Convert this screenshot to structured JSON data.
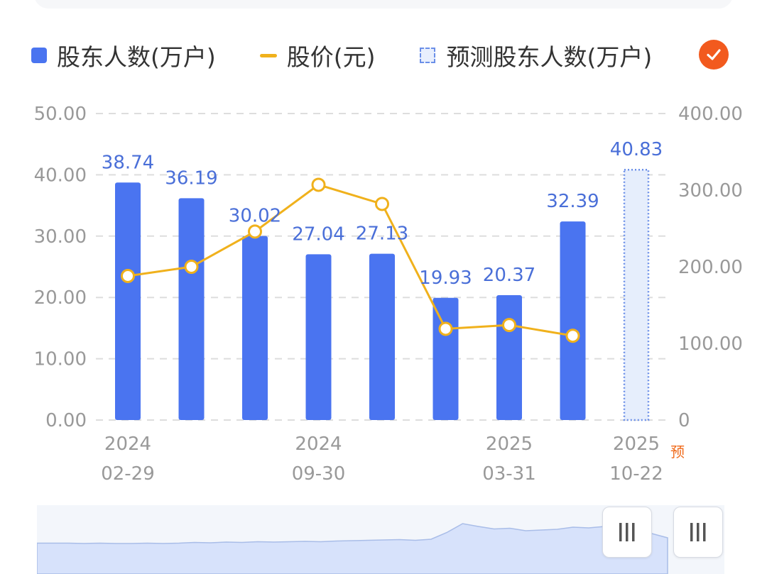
{
  "legend": {
    "items": [
      {
        "label": "股东人数(万户)",
        "kind": "bar",
        "color": "#4a74f0"
      },
      {
        "label": "股价(元)",
        "kind": "line",
        "color": "#f0b11c"
      },
      {
        "label": "预测股东人数(万户)",
        "kind": "dashed",
        "color": "#6b8fe8"
      }
    ],
    "check_icon": "check-icon"
  },
  "chart_data": {
    "type": "bar",
    "categories": [
      "2024-02-29",
      "",
      "",
      "2024-09-30",
      "",
      "",
      "2025-03-31",
      "",
      "2025-10-22"
    ],
    "x_tick_labels": [
      {
        "index": 0,
        "year": "2024",
        "date": "02-29"
      },
      {
        "index": 3,
        "year": "2024",
        "date": "09-30"
      },
      {
        "index": 6,
        "year": "2025",
        "date": "03-31"
      },
      {
        "index": 8,
        "year": "2025",
        "date": "10-22",
        "flag": "预"
      }
    ],
    "series": [
      {
        "name": "股东人数(万户)",
        "type": "bar",
        "axis": "left",
        "values": [
          38.74,
          36.19,
          30.02,
          27.04,
          27.13,
          19.93,
          20.37,
          32.39,
          null
        ],
        "labels": [
          "38.74",
          "36.19",
          "30.02",
          "27.04",
          "27.13",
          "19.93",
          "20.37",
          "32.39",
          ""
        ]
      },
      {
        "name": "股价(元)",
        "type": "line",
        "axis": "right",
        "values": [
          188,
          200,
          246,
          307,
          282,
          119,
          124,
          110,
          null
        ]
      },
      {
        "name": "预测股东人数(万户)",
        "type": "bar-dashed",
        "axis": "left",
        "values": [
          null,
          null,
          null,
          null,
          null,
          null,
          null,
          null,
          40.83
        ],
        "labels": [
          "",
          "",
          "",
          "",
          "",
          "",
          "",
          "",
          "40.83"
        ]
      }
    ],
    "y_left": {
      "min": 0,
      "max": 50,
      "ticks": [
        "0.00",
        "10.00",
        "20.00",
        "30.00",
        "40.00",
        "50.00"
      ]
    },
    "y_right": {
      "min": 0,
      "max": 400,
      "ticks": [
        "0",
        "100.00",
        "200.00",
        "300.00",
        "400.00"
      ]
    },
    "grid": true
  },
  "navigator": {
    "overview_values": [
      15,
      15,
      15,
      14,
      15,
      14,
      14,
      15,
      14,
      15,
      17,
      16,
      18,
      17,
      19,
      18,
      19,
      20,
      19,
      21,
      22,
      23,
      24,
      25,
      23,
      26,
      45,
      70,
      62,
      55,
      57,
      50,
      52,
      54,
      60,
      58,
      62,
      56,
      50,
      42,
      30
    ]
  }
}
